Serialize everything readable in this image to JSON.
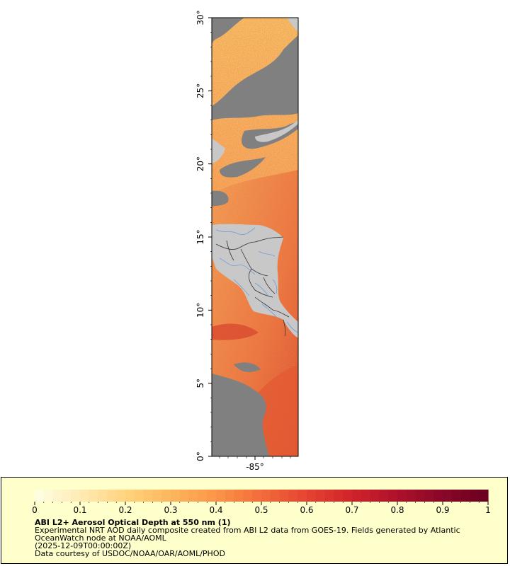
{
  "map": {
    "lat_ticks": [
      "0°",
      "5°",
      "10°",
      "15°",
      "20°",
      "25°",
      "30°"
    ],
    "lon_ticks": [
      "-85°"
    ],
    "lat_range": [
      0,
      30
    ],
    "colors": {
      "land": "#c8c8c8",
      "no_data": "#808080",
      "border": "#333333",
      "river": "#6f9ed8"
    }
  },
  "legend": {
    "title": "ABI L2+ Aerosol Optical Depth at 550 nm (1)",
    "description_line1": "Experimental NRT AOD daily composite created from ABI L2 data from GOES-19. Fields generated by Atlantic",
    "description_line2": "OceanWatch node at NOAA/AOML",
    "time": "(2025-12-09T00:00:00Z)",
    "credit": "Data courtesy of USDOC/NOAA/OAR/AOML/PHOD",
    "ticks": [
      "0",
      "0.1",
      "0.2",
      "0.3",
      "0.4",
      "0.5",
      "0.6",
      "0.7",
      "0.8",
      "0.9",
      "1"
    ],
    "range": [
      0,
      1
    ],
    "colormap": [
      "#fffde0",
      "#ffe9b0",
      "#ffd27a",
      "#fdb55c",
      "#fb9447",
      "#f26c3b",
      "#e64432",
      "#d1242a",
      "#b0122b",
      "#8c0828",
      "#6d0020"
    ]
  }
}
